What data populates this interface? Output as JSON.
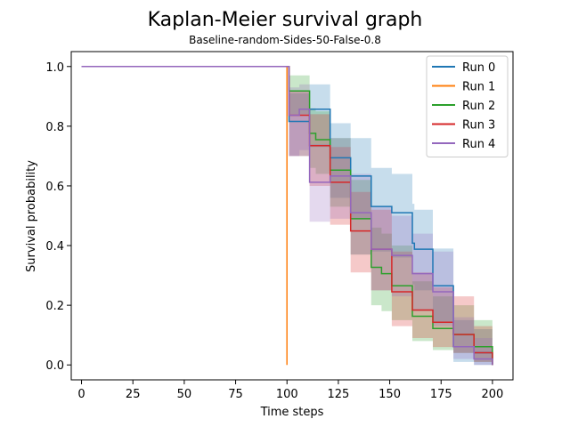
{
  "chart_data": {
    "type": "line",
    "title": "Kaplan-Meier survival graph",
    "subtitle": "Baseline-random-Sides-50-False-0.8",
    "xlabel": "Time steps",
    "ylabel": "Survival probability",
    "xlim": [
      -5,
      210
    ],
    "ylim": [
      -0.05,
      1.05
    ],
    "xticks": [
      0,
      25,
      50,
      75,
      100,
      125,
      150,
      175,
      200
    ],
    "yticks": [
      0.0,
      0.2,
      0.4,
      0.6,
      0.8,
      1.0
    ],
    "xtick_labels": [
      "0",
      "25",
      "50",
      "75",
      "100",
      "125",
      "150",
      "175",
      "200"
    ],
    "ytick_labels": [
      "0.0",
      "0.2",
      "0.4",
      "0.6",
      "0.8",
      "1.0"
    ],
    "legend_position": "top-right",
    "grid": false,
    "series": [
      {
        "name": "Run 0",
        "color": "#1f77b4",
        "x": [
          0,
          100,
          101,
          111,
          121,
          131,
          141,
          151,
          161,
          162,
          171,
          181,
          191,
          200
        ],
        "y": [
          1.0,
          1.0,
          0.816,
          0.857,
          0.694,
          0.633,
          0.531,
          0.51,
          0.408,
          0.388,
          0.265,
          0.061,
          0.041,
          0.0
        ],
        "ci_low": [
          1.0,
          1.0,
          0.7,
          0.73,
          0.56,
          0.49,
          0.38,
          0.36,
          0.27,
          0.25,
          0.14,
          0.01,
          0.0,
          0.0
        ],
        "ci_high": [
          1.0,
          1.0,
          0.91,
          0.94,
          0.81,
          0.76,
          0.66,
          0.64,
          0.54,
          0.52,
          0.39,
          0.15,
          0.12,
          0.0
        ]
      },
      {
        "name": "Run 1",
        "color": "#ff7f0e",
        "x": [
          0,
          100
        ],
        "y": [
          1.0,
          0.0
        ],
        "ci_low": [
          1.0,
          0.0
        ],
        "ci_high": [
          1.0,
          0.0
        ]
      },
      {
        "name": "Run 2",
        "color": "#2ca02c",
        "x": [
          0,
          100,
          101,
          111,
          114,
          121,
          131,
          141,
          146,
          151,
          161,
          171,
          181,
          191,
          200
        ],
        "y": [
          1.0,
          1.0,
          0.918,
          0.776,
          0.755,
          0.653,
          0.49,
          0.327,
          0.306,
          0.265,
          0.163,
          0.122,
          0.102,
          0.061,
          0.0
        ],
        "ci_low": [
          1.0,
          1.0,
          0.84,
          0.66,
          0.64,
          0.53,
          0.37,
          0.2,
          0.18,
          0.15,
          0.08,
          0.05,
          0.04,
          0.01,
          0.0
        ],
        "ci_high": [
          1.0,
          1.0,
          0.97,
          0.86,
          0.85,
          0.76,
          0.62,
          0.46,
          0.44,
          0.4,
          0.28,
          0.23,
          0.2,
          0.15,
          0.0
        ]
      },
      {
        "name": "Run 3",
        "color": "#d62728",
        "x": [
          0,
          100,
          101,
          111,
          121,
          131,
          141,
          151,
          161,
          171,
          181,
          191,
          200
        ],
        "y": [
          1.0,
          1.0,
          0.837,
          0.735,
          0.612,
          0.449,
          0.388,
          0.245,
          0.184,
          0.143,
          0.102,
          0.041,
          0.0
        ],
        "ci_low": [
          1.0,
          1.0,
          0.7,
          0.6,
          0.47,
          0.31,
          0.25,
          0.13,
          0.09,
          0.06,
          0.04,
          0.01,
          0.0
        ],
        "ci_high": [
          1.0,
          1.0,
          0.92,
          0.84,
          0.73,
          0.58,
          0.52,
          0.38,
          0.31,
          0.26,
          0.23,
          0.13,
          0.0
        ]
      },
      {
        "name": "Run 4",
        "color": "#9467bd",
        "x": [
          0,
          100,
          101,
          106,
          111,
          121,
          131,
          141,
          151,
          161,
          171,
          181,
          191,
          200
        ],
        "y": [
          1.0,
          1.0,
          0.837,
          0.857,
          0.612,
          0.633,
          0.51,
          0.388,
          0.367,
          0.306,
          0.245,
          0.061,
          0.02,
          0.0
        ],
        "ci_low": [
          1.0,
          1.0,
          0.7,
          0.72,
          0.48,
          0.49,
          0.37,
          0.25,
          0.23,
          0.18,
          0.13,
          0.02,
          0.0,
          0.0
        ],
        "ci_high": [
          1.0,
          1.0,
          0.93,
          0.94,
          0.74,
          0.76,
          0.64,
          0.53,
          0.5,
          0.44,
          0.38,
          0.16,
          0.09,
          0.0
        ]
      }
    ]
  }
}
